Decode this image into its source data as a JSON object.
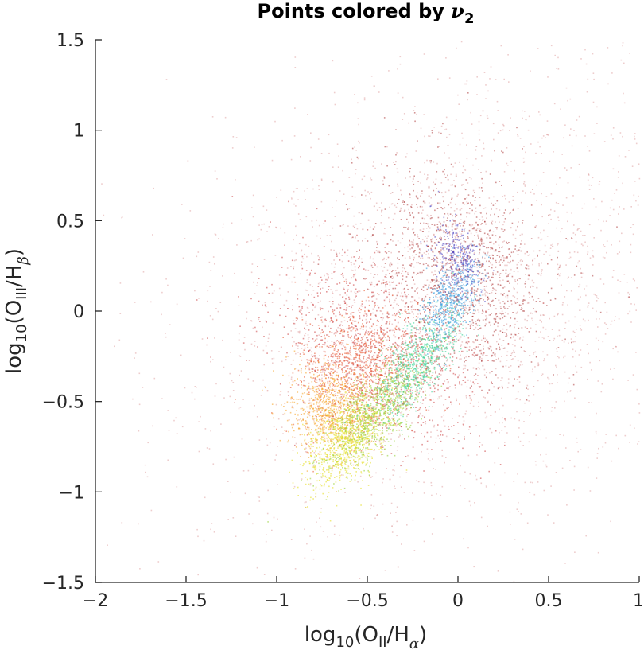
{
  "chart_data": {
    "type": "scatter",
    "title": {
      "prefix": "Points colored by ",
      "symbol": "ν",
      "subscript": "2"
    },
    "xlabel": {
      "base": "log",
      "base_sub": "10",
      "open": "(O",
      "ion_sub": "II",
      "mid": "/H",
      "line_sub": "α",
      "close": ")"
    },
    "ylabel": {
      "base": "log",
      "base_sub": "10",
      "open": "(O",
      "ion_sub": "III",
      "mid": "/H",
      "line_sub": "β",
      "close": ")"
    },
    "xlim": [
      -2,
      1
    ],
    "ylim": [
      -1.5,
      1.5
    ],
    "xticks": [
      -2,
      -1.5,
      -1,
      -0.5,
      0,
      0.5,
      1
    ],
    "xtick_labels": [
      "−2",
      "−1.5",
      "−1",
      "−0.5",
      "0",
      "0.5",
      "1"
    ],
    "yticks": [
      -1.5,
      -1,
      -0.5,
      0,
      0.5,
      1,
      1.5
    ],
    "ytick_labels": [
      "−1.5",
      "−1",
      "−0.5",
      "0",
      "0.5",
      "1",
      "1.5"
    ],
    "grid": false,
    "colormap": "jet (by ν2)",
    "series": [
      {
        "color": "#b01c1c",
        "cx": -0.05,
        "cy": 0.05,
        "sx": 0.75,
        "sy": 0.6,
        "rot": 0.55,
        "n": 2600,
        "opacity": 0.22
      },
      {
        "color": "#9e1414",
        "cx": 0.02,
        "cy": 0.22,
        "sx": 0.22,
        "sy": 0.3,
        "rot": 0.5,
        "n": 1200,
        "opacity": 0.45
      },
      {
        "color": "#c0181a",
        "cx": -0.45,
        "cy": -0.22,
        "sx": 0.22,
        "sy": 0.32,
        "rot": 0.9,
        "n": 1100,
        "opacity": 0.45
      },
      {
        "color": "#e8451a",
        "cx": -0.55,
        "cy": -0.32,
        "sx": 0.18,
        "sy": 0.16,
        "rot": 0.9,
        "n": 900,
        "opacity": 0.5
      },
      {
        "color": "#f5a020",
        "cx": -0.72,
        "cy": -0.55,
        "sx": 0.12,
        "sy": 0.12,
        "rot": 0.9,
        "n": 700,
        "opacity": 0.55
      },
      {
        "color": "#e6e02a",
        "cx": -0.62,
        "cy": -0.72,
        "sx": 0.14,
        "sy": 0.08,
        "rot": 0.9,
        "n": 800,
        "opacity": 0.6
      },
      {
        "color": "#9ad23a",
        "cx": -0.45,
        "cy": -0.55,
        "sx": 0.2,
        "sy": 0.08,
        "rot": 0.9,
        "n": 800,
        "opacity": 0.6
      },
      {
        "color": "#3fd49a",
        "cx": -0.22,
        "cy": -0.28,
        "sx": 0.18,
        "sy": 0.07,
        "rot": 0.95,
        "n": 650,
        "opacity": 0.6
      },
      {
        "color": "#3a9fe0",
        "cx": -0.05,
        "cy": 0.05,
        "sx": 0.13,
        "sy": 0.06,
        "rot": 1.1,
        "n": 500,
        "opacity": 0.6
      },
      {
        "color": "#4a3fbf",
        "cx": 0.0,
        "cy": 0.3,
        "sx": 0.06,
        "sy": 0.1,
        "rot": 0.3,
        "n": 300,
        "opacity": 0.55
      }
    ]
  }
}
